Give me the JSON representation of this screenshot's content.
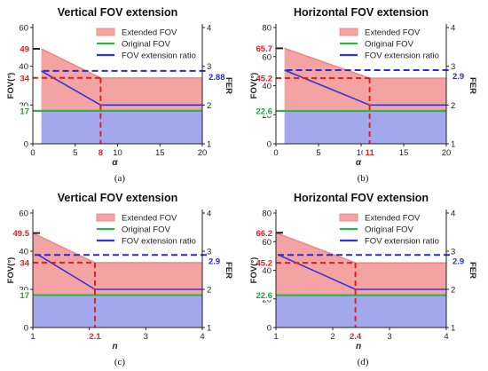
{
  "colors": {
    "extended_fill": "#f4a3a3",
    "extended_line": "#ee8080",
    "original_fill": "#a3a8ec",
    "original_line": "#2fb24a",
    "fer_line": "#3333dd",
    "fer_dashed": "#2b2bd0",
    "guide": "#e02020",
    "original_label": "#1fa33a"
  },
  "chart_data": [
    {
      "type": "area",
      "title": "Vertical FOV extension",
      "xlabel": "α",
      "ylabel": "FOV(°)",
      "y2label": "FER",
      "caption": "(a)",
      "xlim": [
        0,
        20
      ],
      "ylim": [
        0,
        60
      ],
      "y2lim": [
        1,
        4
      ],
      "xticks": [
        0,
        5,
        10,
        15,
        20
      ],
      "yticks": [
        0,
        20,
        40,
        60
      ],
      "y2ticks": [
        1,
        2,
        3,
        4
      ],
      "legend": [
        "Extended FOV",
        "Original FOV",
        "FOV extension ratio"
      ],
      "legend_position": "top-right",
      "series": [
        {
          "name": "Extended FOV",
          "x": [
            1,
            8,
            20
          ],
          "y": [
            49,
            34,
            34
          ]
        },
        {
          "name": "Original FOV",
          "x": [
            0,
            20
          ],
          "y": [
            17,
            17
          ]
        },
        {
          "name": "FOV extension ratio",
          "axis": "right",
          "x": [
            1,
            8,
            20
          ],
          "y": [
            2.88,
            2,
            2
          ]
        }
      ],
      "markers": {
        "x": 8,
        "x_label": "8",
        "y_extended": 34,
        "y_max": 49,
        "y_original": 17,
        "fer": 2.88,
        "fer_label": "2.88"
      },
      "notes": [
        {
          "text": "49",
          "color": "#e02020",
          "side": "left"
        },
        {
          "text": "34",
          "color": "#e02020",
          "side": "left"
        },
        {
          "text": "17",
          "color": "#1fa33a",
          "side": "left"
        },
        {
          "text": "8",
          "color": "#e02020",
          "side": "bottom"
        },
        {
          "text": "2.88",
          "color": "#2b2bd0",
          "side": "right"
        }
      ]
    },
    {
      "type": "area",
      "title": "Horizontal FOV extension",
      "xlabel": "α",
      "ylabel": "FOV(°)",
      "y2label": "FER",
      "caption": "(b)",
      "xlim": [
        0,
        20
      ],
      "ylim": [
        0,
        80
      ],
      "y2lim": [
        1,
        4
      ],
      "xticks": [
        0,
        5,
        10,
        15,
        20
      ],
      "yticks": [
        0,
        20,
        40,
        60,
        80
      ],
      "y2ticks": [
        1,
        2,
        3,
        4
      ],
      "legend": [
        "Extended FOV",
        "Original FOV",
        "FOV extension ratio"
      ],
      "legend_position": "top-right",
      "series": [
        {
          "name": "Extended FOV",
          "x": [
            1,
            11,
            20
          ],
          "y": [
            65.7,
            45.2,
            45.2
          ]
        },
        {
          "name": "Original FOV",
          "x": [
            0,
            20
          ],
          "y": [
            22.6,
            22.6
          ]
        },
        {
          "name": "FOV extension ratio",
          "axis": "right",
          "x": [
            1,
            11,
            20
          ],
          "y": [
            2.9,
            2,
            2
          ]
        }
      ],
      "markers": {
        "x": 11,
        "x_label": "11",
        "y_extended": 45.2,
        "y_max": 65.7,
        "y_original": 22.6,
        "fer": 2.9,
        "fer_label": "2.9"
      },
      "notes": [
        {
          "text": "65.7",
          "color": "#e02020",
          "side": "left"
        },
        {
          "text": "45.2",
          "color": "#e02020",
          "side": "left"
        },
        {
          "text": "22.6",
          "color": "#1fa33a",
          "side": "left"
        },
        {
          "text": "11",
          "color": "#e02020",
          "side": "bottom"
        },
        {
          "text": "2.9",
          "color": "#2b2bd0",
          "side": "right"
        }
      ]
    },
    {
      "type": "area",
      "title": "Vertical FOV extension",
      "xlabel": "n",
      "ylabel": "FOV(°)",
      "y2label": "FER",
      "caption": "(c)",
      "xlim": [
        1,
        4
      ],
      "ylim": [
        0,
        60
      ],
      "y2lim": [
        1,
        4
      ],
      "xticks": [
        1,
        2,
        3,
        4
      ],
      "yticks": [
        0,
        20,
        40,
        60
      ],
      "y2ticks": [
        1,
        2,
        3,
        4
      ],
      "legend": [
        "Extended FOV",
        "Original FOV",
        "FOV extension ratio"
      ],
      "legend_position": "top-right",
      "series": [
        {
          "name": "Extended FOV",
          "x": [
            1,
            2.1,
            4
          ],
          "y": [
            49.5,
            34,
            34
          ]
        },
        {
          "name": "Original FOV",
          "x": [
            1,
            4
          ],
          "y": [
            17,
            17
          ]
        },
        {
          "name": "FOV extension ratio",
          "axis": "right",
          "x": [
            1.1,
            2.1,
            4
          ],
          "y": [
            2.9,
            2,
            2
          ]
        }
      ],
      "markers": {
        "x": 2.1,
        "x_label": "2.1",
        "y_extended": 34,
        "y_max": 49.5,
        "y_original": 17,
        "fer": 2.9,
        "fer_label": "2.9"
      },
      "notes": [
        {
          "text": "49.5",
          "color": "#e02020",
          "side": "left"
        },
        {
          "text": "34",
          "color": "#e02020",
          "side": "left"
        },
        {
          "text": "17",
          "color": "#1fa33a",
          "side": "left"
        },
        {
          "text": "2.1",
          "color": "#e02020",
          "side": "bottom"
        },
        {
          "text": "2.9",
          "color": "#2b2bd0",
          "side": "right"
        }
      ]
    },
    {
      "type": "area",
      "title": "Horizontal FOV extension",
      "xlabel": "n",
      "ylabel": "FOV(°)",
      "y2label": "FER",
      "caption": "(d)",
      "xlim": [
        1,
        4
      ],
      "ylim": [
        0,
        80
      ],
      "y2lim": [
        1,
        4
      ],
      "xticks": [
        1,
        2,
        3,
        4
      ],
      "yticks": [
        0,
        20,
        40,
        60,
        80
      ],
      "y2ticks": [
        1,
        2,
        3,
        4
      ],
      "legend": [
        "Extended FOV",
        "Original FOV",
        "FOV extension ratio"
      ],
      "legend_position": "top-right",
      "series": [
        {
          "name": "Extended FOV",
          "x": [
            1,
            2.4,
            4
          ],
          "y": [
            66.2,
            45.2,
            45.2
          ]
        },
        {
          "name": "Original FOV",
          "x": [
            1,
            4
          ],
          "y": [
            22.6,
            22.6
          ]
        },
        {
          "name": "FOV extension ratio",
          "axis": "right",
          "x": [
            1.05,
            2.4,
            4
          ],
          "y": [
            2.9,
            2,
            2
          ]
        }
      ],
      "markers": {
        "x": 2.4,
        "x_label": "2.4",
        "y_extended": 45.2,
        "y_max": 66.2,
        "y_original": 22.6,
        "fer": 2.9,
        "fer_label": "2.9"
      },
      "notes": [
        {
          "text": "66.2",
          "color": "#e02020",
          "side": "left"
        },
        {
          "text": "45.2",
          "color": "#e02020",
          "side": "left"
        },
        {
          "text": "22.6",
          "color": "#1fa33a",
          "side": "left"
        },
        {
          "text": "2.4",
          "color": "#e02020",
          "side": "bottom"
        },
        {
          "text": "2.9",
          "color": "#2b2bd0",
          "side": "right"
        }
      ]
    }
  ]
}
